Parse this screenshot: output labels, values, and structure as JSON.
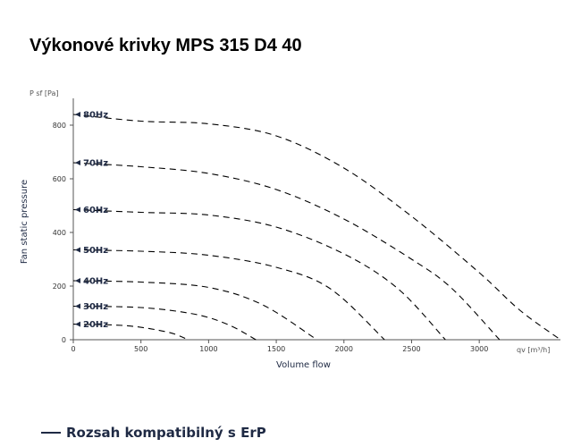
{
  "title": "Výkonové krivky MPS 315 D4 40",
  "legend": {
    "label": "Rozsah kompatibilný s ErP",
    "color": "#1f2a44"
  },
  "chart_data": {
    "type": "line",
    "xlabel": "Volume flow",
    "ylabel": "Fan static pressure",
    "x_unit": "qv [m³/h]",
    "y_unit": "P sf [Pa]",
    "xlim": [
      0,
      3600
    ],
    "ylim": [
      0,
      900
    ],
    "x_ticks": [
      0,
      500,
      1000,
      1500,
      2000,
      2500,
      3000
    ],
    "y_ticks": [
      0,
      200,
      400,
      600,
      800
    ],
    "grid": false,
    "line_style": "dashed",
    "line_color": "#000000",
    "series": [
      {
        "name": "80Hz",
        "points": [
          [
            0,
            840
          ],
          [
            500,
            815
          ],
          [
            1000,
            805
          ],
          [
            1500,
            760
          ],
          [
            2000,
            640
          ],
          [
            2500,
            460
          ],
          [
            3000,
            250
          ],
          [
            3300,
            110
          ],
          [
            3600,
            0
          ]
        ]
      },
      {
        "name": "70Hz",
        "points": [
          [
            0,
            660
          ],
          [
            500,
            645
          ],
          [
            1000,
            620
          ],
          [
            1500,
            560
          ],
          [
            2000,
            450
          ],
          [
            2500,
            300
          ],
          [
            2800,
            190
          ],
          [
            3150,
            0
          ]
        ]
      },
      {
        "name": "60Hz",
        "points": [
          [
            0,
            485
          ],
          [
            500,
            475
          ],
          [
            1000,
            465
          ],
          [
            1500,
            420
          ],
          [
            2000,
            320
          ],
          [
            2400,
            190
          ],
          [
            2750,
            0
          ]
        ]
      },
      {
        "name": "50Hz",
        "points": [
          [
            0,
            335
          ],
          [
            500,
            330
          ],
          [
            1000,
            315
          ],
          [
            1500,
            270
          ],
          [
            1900,
            190
          ],
          [
            2300,
            0
          ]
        ]
      },
      {
        "name": "40Hz",
        "points": [
          [
            0,
            220
          ],
          [
            500,
            215
          ],
          [
            1000,
            195
          ],
          [
            1400,
            130
          ],
          [
            1800,
            0
          ]
        ]
      },
      {
        "name": "30Hz",
        "points": [
          [
            0,
            125
          ],
          [
            500,
            120
          ],
          [
            900,
            95
          ],
          [
            1150,
            55
          ],
          [
            1350,
            0
          ]
        ]
      },
      {
        "name": "20Hz",
        "points": [
          [
            0,
            58
          ],
          [
            400,
            52
          ],
          [
            700,
            28
          ],
          [
            850,
            0
          ]
        ]
      }
    ]
  }
}
